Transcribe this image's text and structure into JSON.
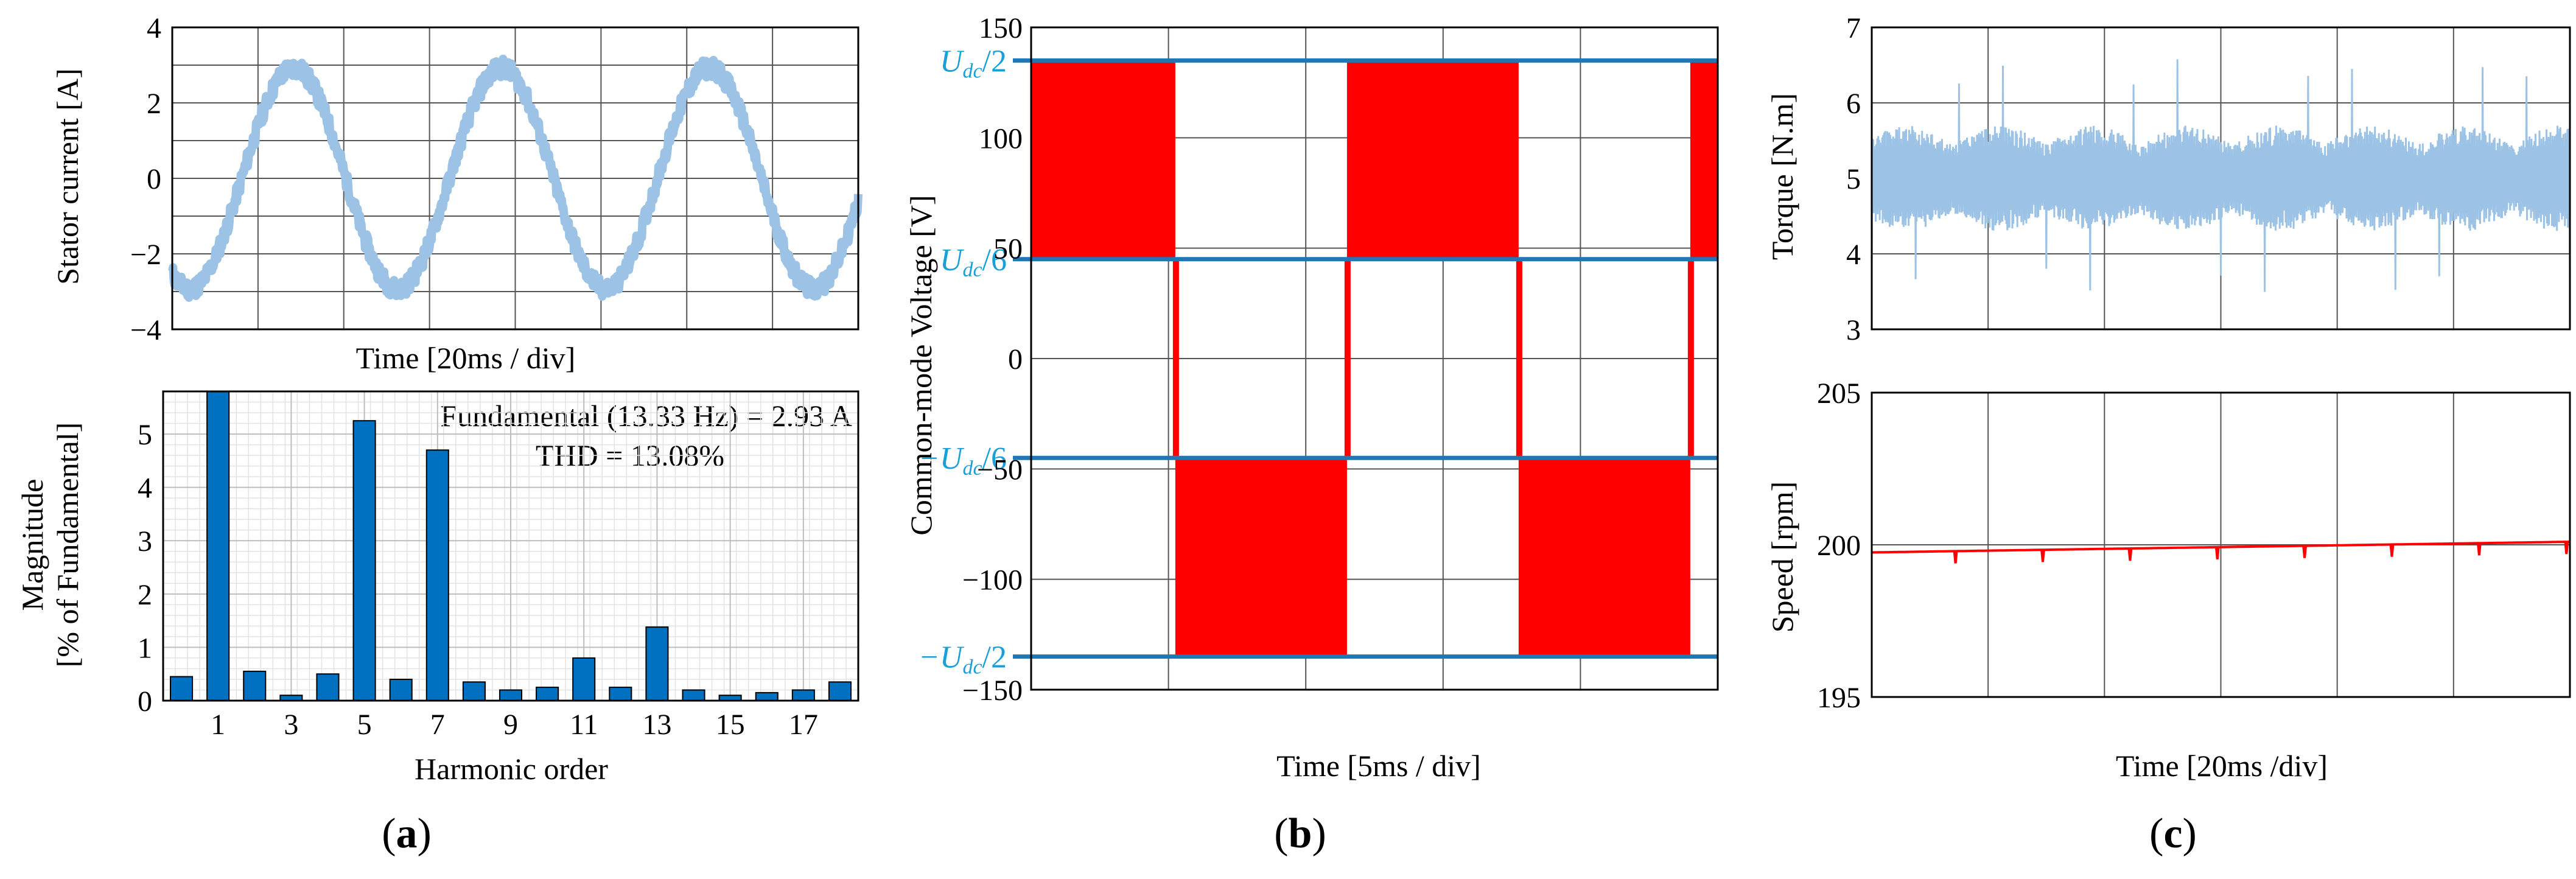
{
  "chart_data": [
    {
      "id": "a-top",
      "type": "line",
      "xlabel": "Time [20ms / div]",
      "ylabel": "Stator current [A]",
      "ylim": [
        -4,
        4
      ],
      "yticks": [
        "4",
        "2",
        "0",
        "−2",
        "−4"
      ],
      "ytick_values": [
        4,
        2,
        0,
        -2,
        -4
      ],
      "grid": true,
      "series": [
        {
          "color": "#9cc3e6",
          "amplitude": 2.93,
          "frequency_hz": 13.33,
          "noise": 0.25,
          "cycles": 3.3
        }
      ]
    },
    {
      "id": "a-bottom",
      "type": "bar",
      "xlabel": "Harmonic order",
      "ylabel_line1": "Magnitude",
      "ylabel_line2": "[% of Fundamental]",
      "ylim": [
        0,
        5.8
      ],
      "yticks": [
        "5",
        "4",
        "3",
        "2",
        "1",
        "0"
      ],
      "ytick_values": [
        5,
        4,
        3,
        2,
        1,
        0
      ],
      "xtick_labels": [
        "1",
        "3",
        "5",
        "7",
        "9",
        "11",
        "13",
        "15",
        "17"
      ],
      "xtick_values": [
        1,
        3,
        5,
        7,
        9,
        11,
        13,
        15,
        17
      ],
      "categories": [
        0,
        1,
        2,
        3,
        4,
        5,
        6,
        7,
        8,
        9,
        10,
        11,
        12,
        13,
        14,
        15,
        16,
        17,
        18
      ],
      "values": [
        0.45,
        5.8,
        0.55,
        0.1,
        0.5,
        5.25,
        0.4,
        4.7,
        0.35,
        0.2,
        0.25,
        0.8,
        0.25,
        1.38,
        0.2,
        0.1,
        0.15,
        0.2,
        0.35
      ],
      "bar_color": "#0070c0",
      "annotation_line1": "Fundamental (13.33 Hz) = 2.93 A",
      "annotation_line2": "THD = 13.08%",
      "grid": true
    },
    {
      "id": "b",
      "type": "line",
      "xlabel": "Time [5ms / div]",
      "ylabel": "Common-mode Voltage [V]",
      "ylim": [
        -150,
        150
      ],
      "yticks": [
        "150",
        "100",
        "50",
        "0",
        "−50",
        "−100",
        "−150"
      ],
      "ytick_values": [
        150,
        100,
        50,
        0,
        -50,
        -100,
        -150
      ],
      "level_labels": [
        {
          "text": "U",
          "sub": "dc",
          "tail": "/2",
          "sign": "",
          "value": 135
        },
        {
          "text": "U",
          "sub": "dc",
          "tail": "/6",
          "sign": "",
          "value": 45
        },
        {
          "text": "U",
          "sub": "dc",
          "tail": "/6",
          "sign": "−",
          "value": -45
        },
        {
          "text": "U",
          "sub": "dc",
          "tail": "/2",
          "sign": "−",
          "value": -135
        }
      ],
      "level_color": "#1f77b4",
      "fill_color": "#ff0000",
      "segments": [
        {
          "x0": 0.0,
          "x1": 0.21,
          "y0": 45,
          "y1": 135
        },
        {
          "x0": 0.21,
          "x1": 0.46,
          "y0": -135,
          "y1": -45
        },
        {
          "x0": 0.46,
          "x1": 0.71,
          "y0": 45,
          "y1": 135
        },
        {
          "x0": 0.71,
          "x1": 0.96,
          "y0": -135,
          "y1": -45
        },
        {
          "x0": 0.96,
          "x1": 1.0,
          "y0": 45,
          "y1": 135
        }
      ],
      "grid": true
    },
    {
      "id": "c-top",
      "type": "line",
      "ylabel": "Torque [N.m]",
      "ylim": [
        3,
        7
      ],
      "yticks": [
        "7",
        "6",
        "5",
        "4",
        "3"
      ],
      "ytick_values": [
        7,
        6,
        5,
        4,
        3
      ],
      "series": [
        {
          "color": "#9cc3e6",
          "mean": 5.0
        }
      ],
      "grid": true
    },
    {
      "id": "c-bottom",
      "type": "line",
      "xlabel": "Time [20ms /div]",
      "ylabel": "Speed [rpm]",
      "ylim": [
        195,
        205
      ],
      "yticks": [
        "205",
        "200",
        "195"
      ],
      "ytick_values": [
        205,
        200,
        195
      ],
      "series": [
        {
          "color": "#ff0000",
          "mean": 199.9
        }
      ],
      "grid": true
    }
  ],
  "panel_labels": {
    "a": {
      "open": "(",
      "letter": "a",
      "close": ")"
    },
    "b": {
      "open": "(",
      "letter": "b",
      "close": ")"
    },
    "c": {
      "open": "(",
      "letter": "c",
      "close": ")"
    }
  }
}
